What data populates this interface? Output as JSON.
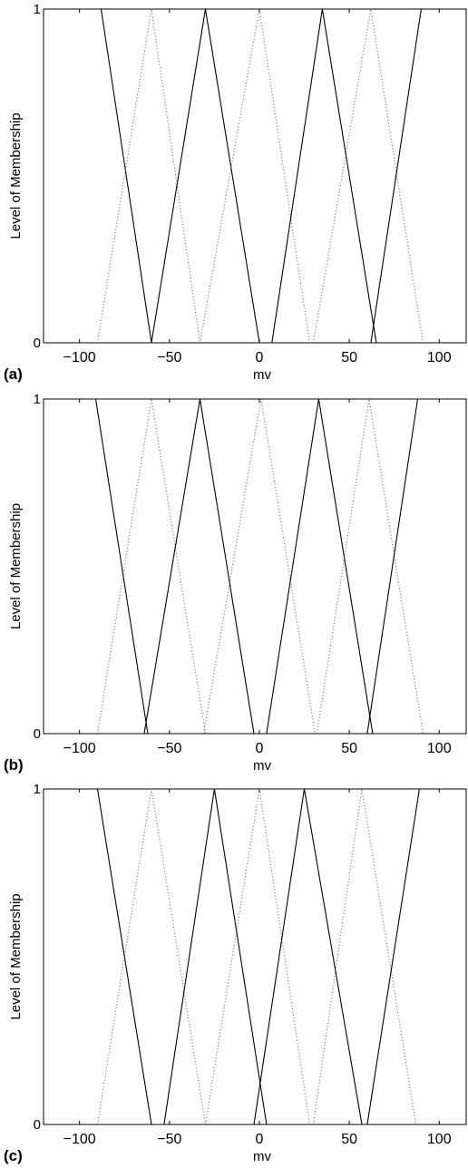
{
  "chart_data": [
    {
      "panel_label": "(a)",
      "type": "line",
      "xlabel": "mv",
      "ylabel": "Level of Membership",
      "xlim": [
        -120,
        115
      ],
      "ylim": [
        0,
        1
      ],
      "xticks": [
        -100,
        -50,
        0,
        50,
        100
      ],
      "xtick_labels": [
        "−100",
        "−50",
        "0",
        "50",
        "100"
      ],
      "yticks": [
        0,
        1
      ],
      "ytick_labels": [
        "0",
        "1"
      ],
      "grid": false,
      "series": [
        {
          "style": "solid",
          "x": [
            -120,
            -88,
            -60
          ],
          "y": [
            1,
            1,
            0
          ]
        },
        {
          "style": "dotted",
          "x": [
            -90,
            -60,
            -33
          ],
          "y": [
            0,
            1,
            0
          ]
        },
        {
          "style": "solid",
          "x": [
            -60,
            -30,
            0
          ],
          "y": [
            0,
            1,
            0
          ]
        },
        {
          "style": "dotted",
          "x": [
            -33,
            0,
            28
          ],
          "y": [
            0,
            1,
            0
          ]
        },
        {
          "style": "solid",
          "x": [
            7,
            35,
            65
          ],
          "y": [
            0,
            1,
            0
          ]
        },
        {
          "style": "dotted",
          "x": [
            30,
            62,
            91
          ],
          "y": [
            0,
            1,
            0
          ]
        },
        {
          "style": "solid",
          "x": [
            62,
            90,
            115
          ],
          "y": [
            0,
            1,
            1
          ]
        }
      ]
    },
    {
      "panel_label": "(b)",
      "type": "line",
      "xlabel": "mv",
      "ylabel": "Level of Membership",
      "xlim": [
        -120,
        115
      ],
      "ylim": [
        0,
        1
      ],
      "xticks": [
        -100,
        -50,
        0,
        50,
        100
      ],
      "xtick_labels": [
        "−100",
        "−50",
        "0",
        "50",
        "100"
      ],
      "yticks": [
        0,
        1
      ],
      "ytick_labels": [
        "0",
        "1"
      ],
      "grid": false,
      "series": [
        {
          "style": "solid",
          "x": [
            -120,
            -91,
            -62
          ],
          "y": [
            1,
            1,
            0
          ]
        },
        {
          "style": "dotted",
          "x": [
            -90,
            -60,
            -30
          ],
          "y": [
            0,
            1,
            0
          ]
        },
        {
          "style": "solid",
          "x": [
            -64,
            -33,
            -3
          ],
          "y": [
            0,
            1,
            0
          ]
        },
        {
          "style": "dotted",
          "x": [
            -31,
            1,
            31
          ],
          "y": [
            0,
            1,
            0
          ]
        },
        {
          "style": "solid",
          "x": [
            4,
            33,
            63
          ],
          "y": [
            0,
            1,
            0
          ]
        },
        {
          "style": "dotted",
          "x": [
            32,
            61,
            91
          ],
          "y": [
            0,
            1,
            0
          ]
        },
        {
          "style": "solid",
          "x": [
            60,
            88,
            115
          ],
          "y": [
            0,
            1,
            1
          ]
        }
      ]
    },
    {
      "panel_label": "(c)",
      "type": "line",
      "xlabel": "mv",
      "ylabel": "Level of Membership",
      "xlim": [
        -120,
        115
      ],
      "ylim": [
        0,
        1
      ],
      "xticks": [
        -100,
        -50,
        0,
        50,
        100
      ],
      "xtick_labels": [
        "−100",
        "−50",
        "0",
        "50",
        "100"
      ],
      "yticks": [
        0,
        1
      ],
      "ytick_labels": [
        "0",
        "1"
      ],
      "grid": false,
      "series": [
        {
          "style": "solid",
          "x": [
            -120,
            -90,
            -60
          ],
          "y": [
            1,
            1,
            0
          ]
        },
        {
          "style": "dotted",
          "x": [
            -90,
            -60,
            -30
          ],
          "y": [
            0,
            1,
            0
          ]
        },
        {
          "style": "solid",
          "x": [
            -53,
            -25,
            4
          ],
          "y": [
            0,
            1,
            0
          ]
        },
        {
          "style": "dotted",
          "x": [
            -30,
            0,
            28
          ],
          "y": [
            0,
            1,
            0
          ]
        },
        {
          "style": "solid",
          "x": [
            -3,
            25,
            57
          ],
          "y": [
            0,
            1,
            0
          ]
        },
        {
          "style": "dotted",
          "x": [
            30,
            57,
            87
          ],
          "y": [
            0,
            1,
            0
          ]
        },
        {
          "style": "solid",
          "x": [
            60,
            89,
            115
          ],
          "y": [
            0,
            1,
            1
          ]
        }
      ]
    }
  ]
}
